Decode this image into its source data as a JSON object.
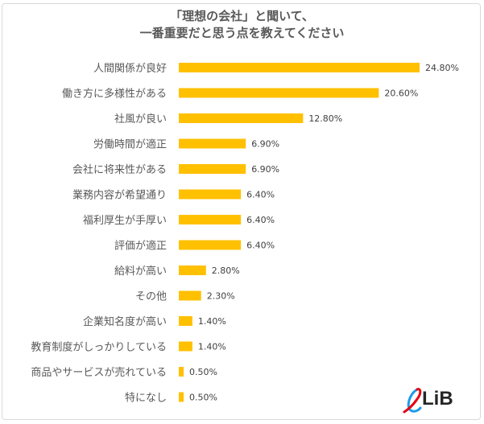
{
  "chart_data": {
    "type": "bar",
    "orientation": "horizontal",
    "title_lines": [
      "「理想の会社」と聞いて、",
      "一番重要だと思う点を教えてください"
    ],
    "categories": [
      "人間関係が良好",
      "働き方に多様性がある",
      "社風が良い",
      "労働時間が適正",
      "会社に将来性がある",
      "業務内容が希望通り",
      "福利厚生が手厚い",
      "評価が適正",
      "給料が高い",
      "その他",
      "企業知名度が高い",
      "教育制度がしっかりしている",
      "商品やサービスが売れている",
      "特になし"
    ],
    "values": [
      24.8,
      20.6,
      12.8,
      6.9,
      6.9,
      6.4,
      6.4,
      6.4,
      2.8,
      2.3,
      1.4,
      1.4,
      0.5,
      0.5
    ],
    "data_labels": [
      "24.80%",
      "20.60%",
      "12.80%",
      "6.90%",
      "6.90%",
      "6.40%",
      "6.40%",
      "6.40%",
      "2.80%",
      "2.30%",
      "1.40%",
      "1.40%",
      "0.50%",
      "0.50%"
    ],
    "unit": "%",
    "bar_color": "#ffc000",
    "grid": false,
    "legend": "none"
  },
  "logo": {
    "text": "LiB",
    "colors": [
      "#e60012",
      "#1e9be6"
    ]
  }
}
